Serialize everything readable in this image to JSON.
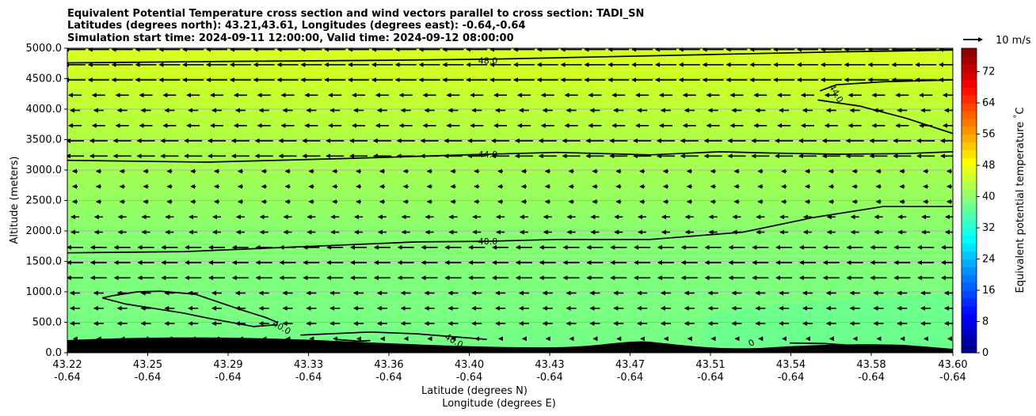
{
  "chart_data": {
    "type": "contourf",
    "title_lines": [
      "Equivalent Potential Temperature cross section and wind vectors parallel to cross section: TADI_SN",
      "Latitudes (degrees north): 43.21,43.61, Longitudes (degrees east): -0.64,-0.64",
      "Simulation start time: 2024-09-11 12:00:00, Valid time: 2024-09-12 08:00:00"
    ],
    "xlabel_lines": [
      "Latitude (degrees N)",
      "Longitude (degrees E)"
    ],
    "ylabel": "Altitude (meters)",
    "x_range": [
      43.22,
      43.6
    ],
    "ylim": [
      0,
      5000
    ],
    "x_ticks": [
      {
        "lat": "43.22",
        "lon": "-0.64",
        "x": 43.22
      },
      {
        "lat": "43.25",
        "lon": "-0.64",
        "x": 43.2545
      },
      {
        "lat": "43.29",
        "lon": "-0.64",
        "x": 43.289
      },
      {
        "lat": "43.33",
        "lon": "-0.64",
        "x": 43.3235
      },
      {
        "lat": "43.36",
        "lon": "-0.64",
        "x": 43.358
      },
      {
        "lat": "43.40",
        "lon": "-0.64",
        "x": 43.3925
      },
      {
        "lat": "43.43",
        "lon": "-0.64",
        "x": 43.427
      },
      {
        "lat": "43.47",
        "lon": "-0.64",
        "x": 43.4615
      },
      {
        "lat": "43.51",
        "lon": "-0.64",
        "x": 43.496
      },
      {
        "lat": "43.54",
        "lon": "-0.64",
        "x": 43.5305
      },
      {
        "lat": "43.58",
        "lon": "-0.64",
        "x": 43.565
      },
      {
        "lat": "43.60",
        "lon": "-0.64",
        "x": 43.6
      }
    ],
    "y_ticks": [
      "0.0",
      "500.0",
      "1000.0",
      "1500.0",
      "2000.0",
      "2500.0",
      "3000.0",
      "3500.0",
      "4000.0",
      "4500.0",
      "5000.0"
    ],
    "grid": "horizontal",
    "colorbar": {
      "label": "Equivalent potential temperature $^\\circ$C",
      "min": 0,
      "max": 78,
      "step": 2,
      "ticks": [
        "0",
        "8",
        "16",
        "24",
        "32",
        "40",
        "48",
        "56",
        "64",
        "72"
      ]
    },
    "quiver_key": "10 m/s",
    "contours": [
      {
        "label": "48.0",
        "points": [
          [
            43.22,
            4760
          ],
          [
            43.28,
            4780
          ],
          [
            43.35,
            4800
          ],
          [
            43.4,
            4820
          ],
          [
            43.45,
            4860
          ],
          [
            43.5,
            4900
          ],
          [
            43.55,
            4940
          ],
          [
            43.6,
            4970
          ]
        ]
      },
      {
        "label": "44.0",
        "points": [
          [
            43.22,
            3160
          ],
          [
            43.28,
            3130
          ],
          [
            43.34,
            3190
          ],
          [
            43.4,
            3260
          ],
          [
            43.43,
            3290
          ],
          [
            43.47,
            3250
          ],
          [
            43.5,
            3300
          ],
          [
            43.52,
            3280
          ],
          [
            43.55,
            3260
          ],
          [
            43.58,
            3270
          ],
          [
            43.6,
            3300
          ]
        ]
      },
      {
        "label": "44.0",
        "points": [
          [
            43.543,
            4300
          ],
          [
            43.55,
            4400
          ],
          [
            43.57,
            4450
          ],
          [
            43.6,
            4480
          ]
        ]
      },
      {
        "label": "44.0",
        "points": [
          [
            43.542,
            4150
          ],
          [
            43.56,
            4050
          ],
          [
            43.58,
            3850
          ],
          [
            43.6,
            3600
          ]
        ]
      },
      {
        "label": "40.0",
        "points": [
          [
            43.22,
            1640
          ],
          [
            43.27,
            1660
          ],
          [
            43.32,
            1740
          ],
          [
            43.37,
            1820
          ],
          [
            43.4,
            1830
          ],
          [
            43.43,
            1860
          ],
          [
            43.47,
            1860
          ],
          [
            43.51,
            1980
          ],
          [
            43.54,
            2220
          ],
          [
            43.57,
            2400
          ],
          [
            43.6,
            2400
          ]
        ]
      },
      {
        "label": "40.0",
        "points": [
          [
            43.235,
            900
          ],
          [
            43.24,
            940
          ],
          [
            43.25,
            1000
          ],
          [
            43.26,
            1010
          ],
          [
            43.275,
            960
          ],
          [
            43.295,
            700
          ],
          [
            43.305,
            580
          ],
          [
            43.31,
            500
          ],
          [
            43.31,
            460
          ],
          [
            43.3,
            430
          ],
          [
            43.28,
            570
          ],
          [
            43.27,
            650
          ],
          [
            43.245,
            800
          ],
          [
            43.235,
            900
          ]
        ]
      },
      {
        "label": "40.0",
        "points": [
          [
            43.32,
            290
          ],
          [
            43.35,
            340
          ],
          [
            43.37,
            310
          ],
          [
            43.4,
            220
          ]
        ]
      },
      {
        "label": "40.0",
        "points": [
          [
            43.335,
            220
          ],
          [
            43.345,
            190
          ],
          [
            43.35,
            200
          ]
        ]
      },
      {
        "label": "40.0",
        "points": [
          [
            43.53,
            160
          ],
          [
            43.545,
            150
          ],
          [
            43.56,
            110
          ]
        ]
      }
    ],
    "contour_labels": [
      {
        "text": "48.0",
        "x": 43.4005,
        "y": 4800,
        "rot": 0
      },
      {
        "text": "44.0",
        "x": 43.4005,
        "y": 3260,
        "rot": 0
      },
      {
        "text": "44.0",
        "x": 43.55,
        "y": 4260,
        "rot": 60
      },
      {
        "text": "40.0",
        "x": 43.4005,
        "y": 1830,
        "rot": 0
      },
      {
        "text": "40.0",
        "x": 43.312,
        "y": 420,
        "rot": 30
      },
      {
        "text": "40.0",
        "x": 43.386,
        "y": 200,
        "rot": 30
      },
      {
        "text": "0",
        "x": 43.5135,
        "y": 165,
        "rot": -30
      }
    ]
  }
}
